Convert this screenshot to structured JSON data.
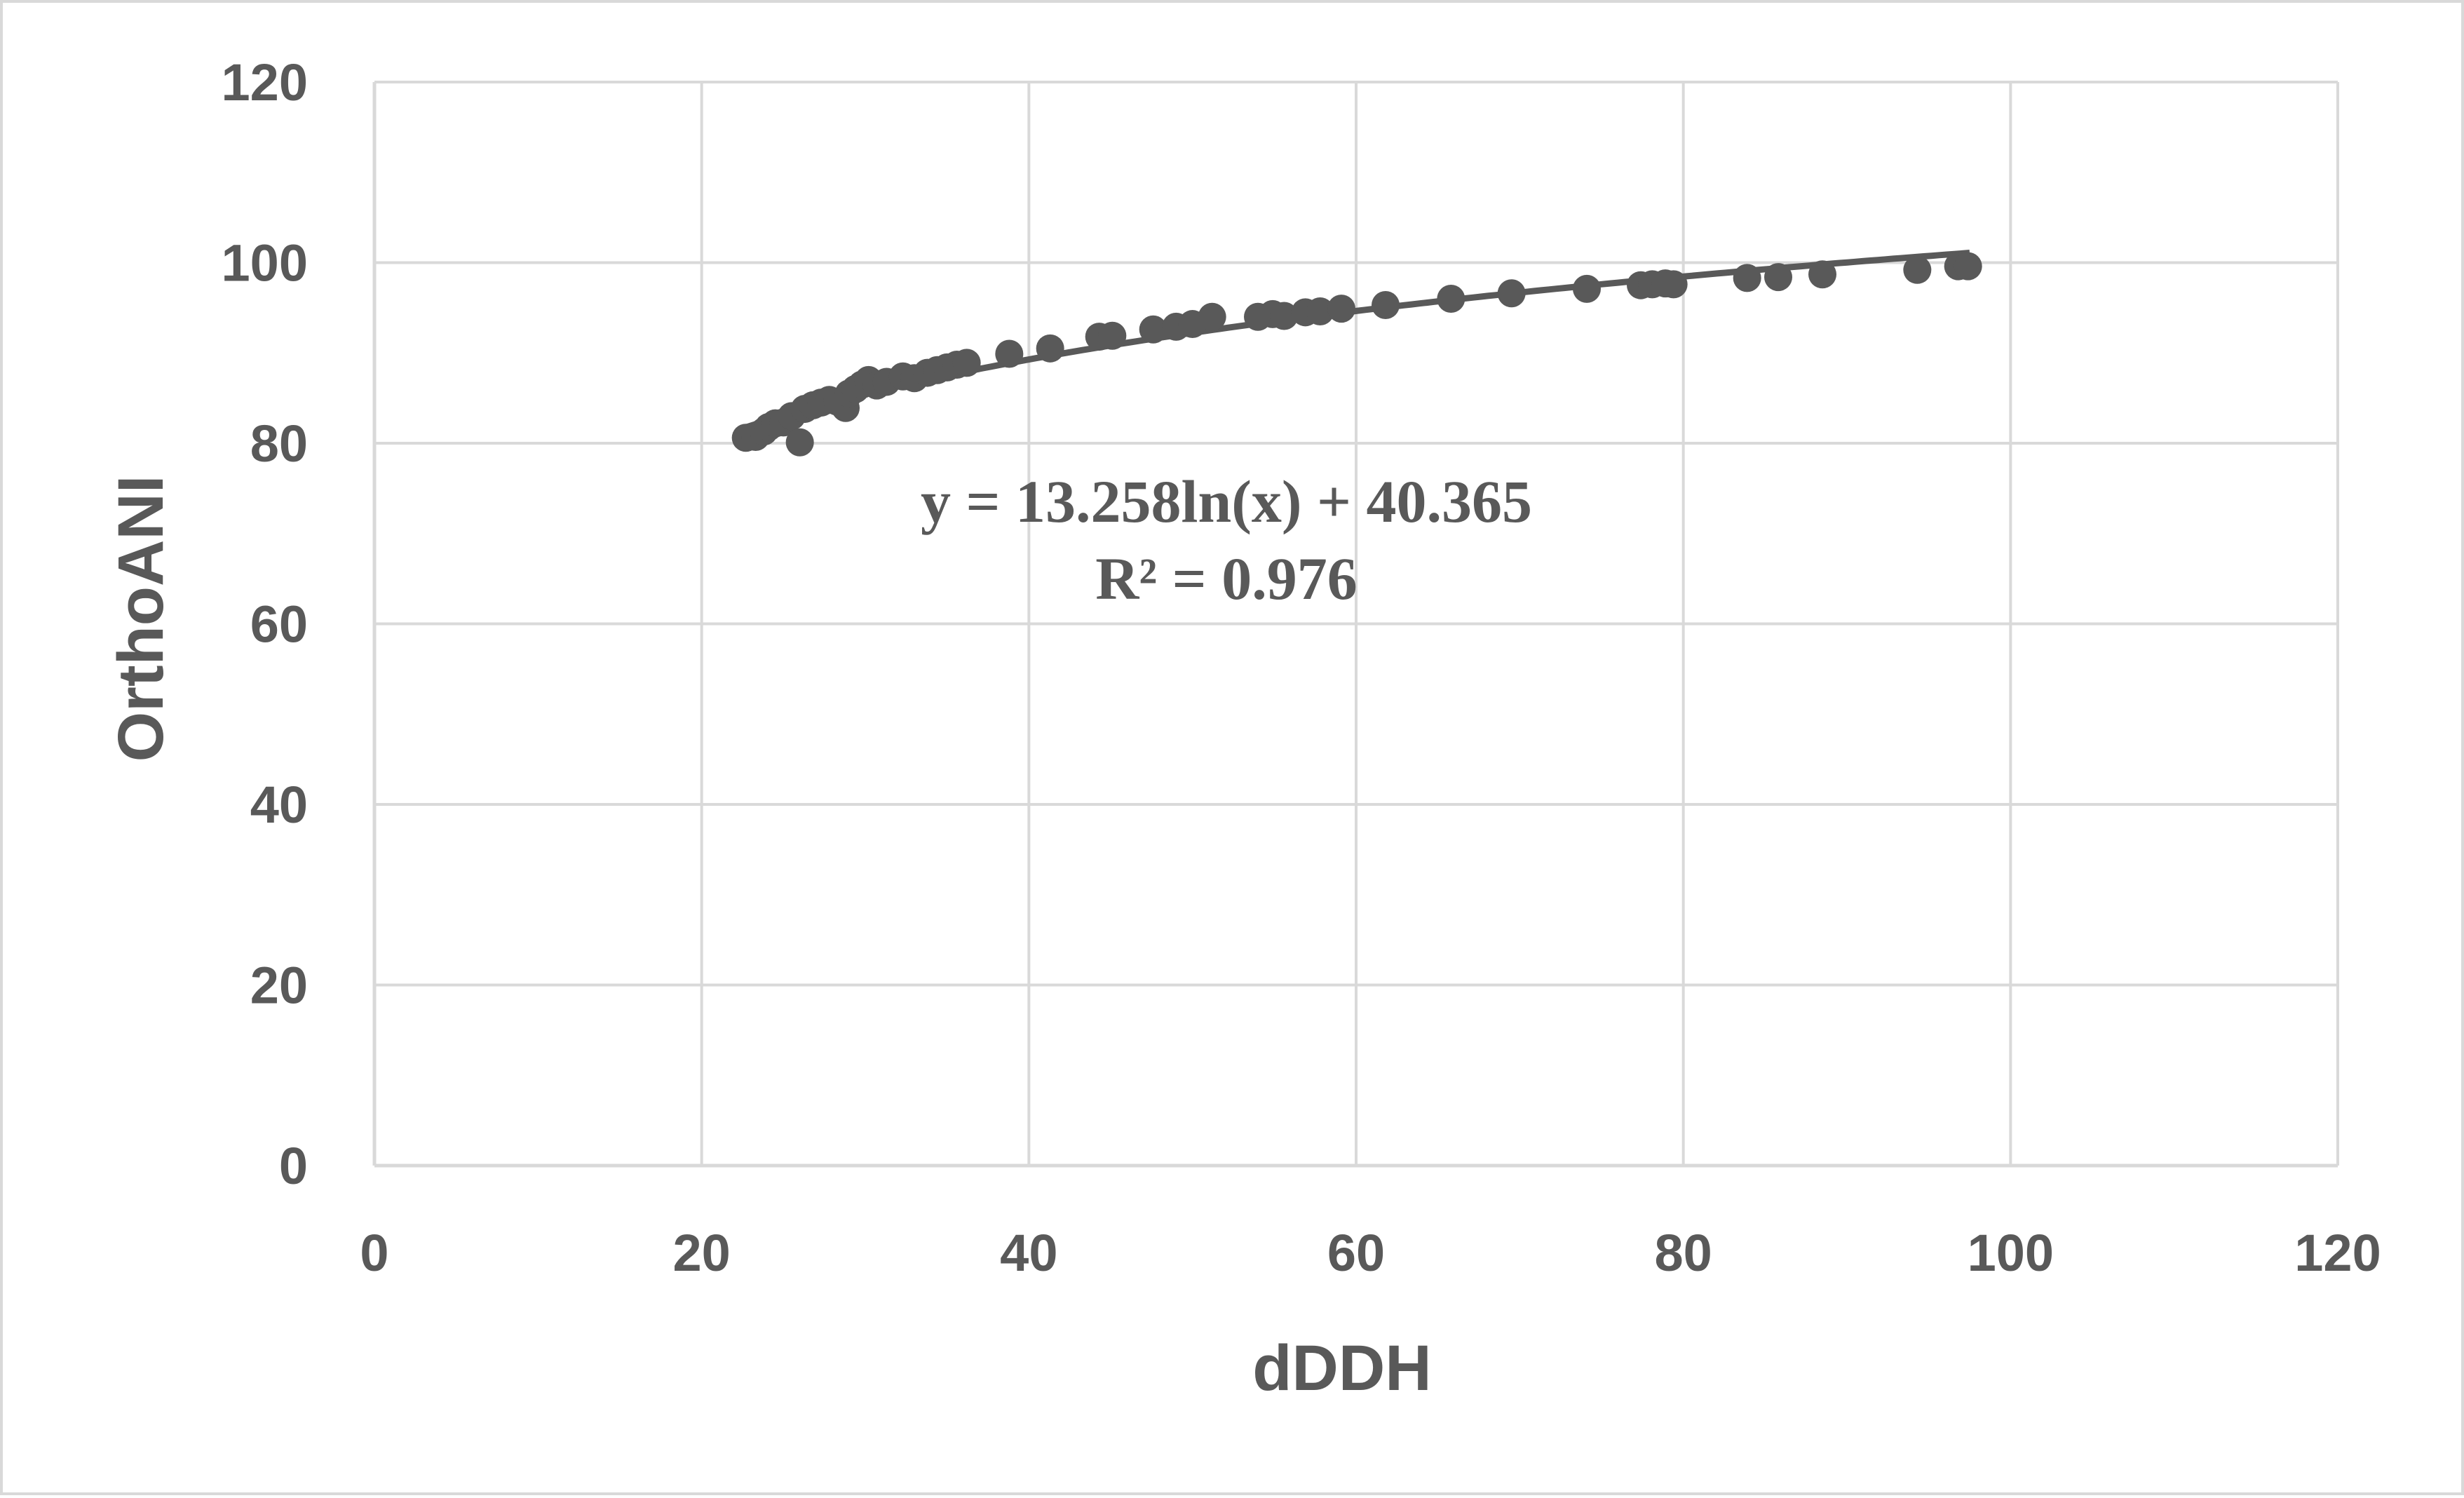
{
  "chart_data": {
    "type": "scatter",
    "xlabel": "dDDH",
    "ylabel": "OrthoANI",
    "xlim": [
      0,
      120
    ],
    "ylim": [
      0,
      120
    ],
    "x_ticks": [
      0,
      20,
      40,
      60,
      80,
      100,
      120
    ],
    "y_ticks": [
      0,
      20,
      40,
      60,
      80,
      100,
      120
    ],
    "grid": true,
    "legend": "none",
    "colors": {
      "marker": "#595959",
      "trendline": "#595959",
      "grid": "#d9d9d9",
      "text": "#595959"
    },
    "series": [
      {
        "points": [
          [
            22.7,
            80.6
          ],
          [
            23.3,
            80.7
          ],
          [
            23.8,
            81.3
          ],
          [
            24.1,
            81.8
          ],
          [
            24.5,
            82.2
          ],
          [
            25.0,
            82.3
          ],
          [
            25.5,
            83.0
          ],
          [
            26.0,
            80.1
          ],
          [
            26.3,
            83.8
          ],
          [
            26.8,
            84.2
          ],
          [
            27.3,
            84.5
          ],
          [
            27.8,
            84.8
          ],
          [
            28.3,
            84.6
          ],
          [
            28.8,
            83.9
          ],
          [
            29.0,
            85.5
          ],
          [
            29.4,
            86.0
          ],
          [
            29.8,
            86.5
          ],
          [
            30.2,
            87.0
          ],
          [
            30.7,
            86.4
          ],
          [
            31.3,
            86.8
          ],
          [
            32.3,
            87.4
          ],
          [
            33.0,
            87.2
          ],
          [
            33.8,
            87.8
          ],
          [
            34.4,
            88.1
          ],
          [
            35.0,
            88.4
          ],
          [
            35.6,
            88.7
          ],
          [
            36.2,
            88.9
          ],
          [
            38.8,
            89.9
          ],
          [
            41.3,
            90.5
          ],
          [
            44.3,
            91.8
          ],
          [
            45.1,
            91.9
          ],
          [
            47.6,
            92.6
          ],
          [
            49.0,
            92.9
          ],
          [
            50.0,
            93.2
          ],
          [
            51.2,
            94.0
          ],
          [
            54.0,
            94.0
          ],
          [
            54.9,
            94.3
          ],
          [
            55.6,
            94.1
          ],
          [
            56.9,
            94.5
          ],
          [
            57.8,
            94.6
          ],
          [
            59.1,
            94.9
          ],
          [
            61.8,
            95.3
          ],
          [
            65.8,
            96.0
          ],
          [
            69.5,
            96.6
          ],
          [
            74.1,
            97.1
          ],
          [
            77.4,
            97.5
          ],
          [
            78.1,
            97.6
          ],
          [
            78.9,
            97.7
          ],
          [
            79.4,
            97.6
          ],
          [
            83.9,
            98.3
          ],
          [
            85.8,
            98.4
          ],
          [
            88.5,
            98.7
          ],
          [
            94.3,
            99.2
          ],
          [
            96.8,
            99.6
          ],
          [
            97.4,
            99.6
          ]
        ]
      }
    ],
    "trendline": {
      "type": "logarithmic",
      "a": 13.258,
      "b": 40.365,
      "x_range": [
        22.7,
        97.5
      ],
      "equation_label": "y = 13.258ln(x) + 40.365",
      "r2_label": "R² = 0.976"
    }
  }
}
